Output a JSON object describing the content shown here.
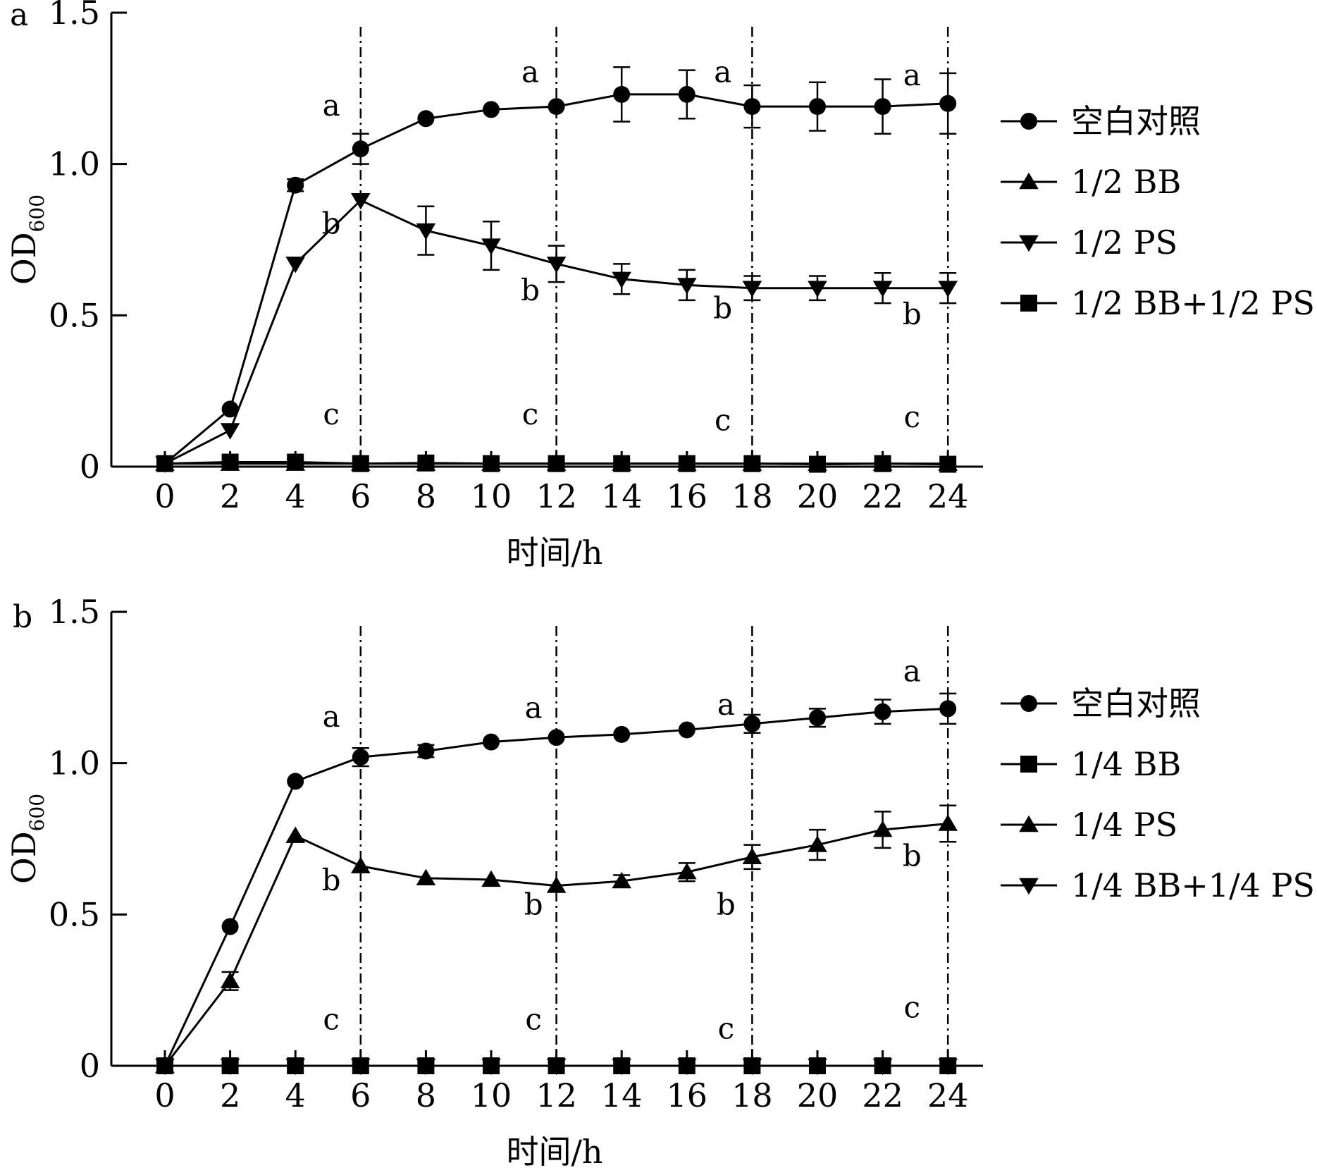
{
  "chart_data": [
    {
      "type": "line",
      "panel_label": "a",
      "xlabel": "时间/h",
      "ylabel_main": "OD",
      "ylabel_sub": "600",
      "xlim": [
        -1,
        25
      ],
      "ylim": [
        0,
        1.5
      ],
      "x_ticks": [
        "0",
        "2",
        "4",
        "6",
        "8",
        "10",
        "12",
        "14",
        "16",
        "18",
        "20",
        "22",
        "24"
      ],
      "y_ticks": [
        "0",
        "0.5",
        "1.0",
        "1.5"
      ],
      "y_tick_values": [
        0,
        0.5,
        1.0,
        1.5
      ],
      "vlines": [
        6,
        12,
        18,
        24
      ],
      "series": [
        {
          "name": "空白对照",
          "marker": "circle",
          "x": [
            0,
            2,
            4,
            6,
            8,
            10,
            12,
            14,
            16,
            18,
            20,
            22,
            24
          ],
          "y": [
            0.01,
            0.19,
            0.93,
            1.05,
            1.15,
            1.18,
            1.19,
            1.23,
            1.23,
            1.19,
            1.19,
            1.19,
            1.2
          ],
          "err": [
            0,
            0,
            0.02,
            0.05,
            0,
            0,
            0,
            0.09,
            0.08,
            0.07,
            0.08,
            0.09,
            0.1
          ]
        },
        {
          "name": "1/2 BB",
          "marker": "triangle-up",
          "x": [
            0,
            2,
            4,
            6,
            8,
            10,
            12,
            14,
            16,
            18,
            20,
            22,
            24
          ],
          "y": [
            0.01,
            0.01,
            0.01,
            0.01,
            0.01,
            0.01,
            0.01,
            0.01,
            0.01,
            0.01,
            0.01,
            0.01,
            0.01
          ],
          "err": [
            0,
            0,
            0,
            0,
            0,
            0,
            0,
            0,
            0,
            0,
            0,
            0,
            0
          ]
        },
        {
          "name": "1/2 PS",
          "marker": "triangle-down",
          "x": [
            0,
            2,
            4,
            6,
            8,
            10,
            12,
            14,
            16,
            18,
            20,
            22,
            24
          ],
          "y": [
            0.01,
            0.12,
            0.67,
            0.88,
            0.78,
            0.73,
            0.67,
            0.62,
            0.6,
            0.59,
            0.59,
            0.59,
            0.59
          ],
          "err": [
            0,
            0,
            0,
            0,
            0.08,
            0.08,
            0.06,
            0.05,
            0.05,
            0.04,
            0.04,
            0.05,
            0.05
          ]
        },
        {
          "name": "1/2 BB+1/2 PS",
          "marker": "square",
          "x": [
            0,
            2,
            4,
            6,
            8,
            10,
            12,
            14,
            16,
            18,
            20,
            22,
            24
          ],
          "y": [
            0.01,
            0.015,
            0.015,
            0.01,
            0.012,
            0.01,
            0.01,
            0.01,
            0.01,
            0.01,
            0.008,
            0.01,
            0.008
          ],
          "err": [
            0,
            0,
            0,
            0,
            0,
            0,
            0,
            0,
            0,
            0,
            0,
            0,
            0
          ]
        }
      ],
      "annotations": [
        {
          "text": "a",
          "x": 5.1,
          "y": 1.16
        },
        {
          "text": "b",
          "x": 5.1,
          "y": 0.77
        },
        {
          "text": "c",
          "x": 5.1,
          "y": 0.14
        },
        {
          "text": "a",
          "x": 11.2,
          "y": 1.27
        },
        {
          "text": "b",
          "x": 11.2,
          "y": 0.55
        },
        {
          "text": "c",
          "x": 11.2,
          "y": 0.14
        },
        {
          "text": "a",
          "x": 17.1,
          "y": 1.27
        },
        {
          "text": "b",
          "x": 17.1,
          "y": 0.49
        },
        {
          "text": "c",
          "x": 17.1,
          "y": 0.12
        },
        {
          "text": "a",
          "x": 22.9,
          "y": 1.26
        },
        {
          "text": "b",
          "x": 22.9,
          "y": 0.47
        },
        {
          "text": "c",
          "x": 22.9,
          "y": 0.13
        }
      ]
    },
    {
      "type": "line",
      "panel_label": "b",
      "xlabel": "时间/h",
      "ylabel_main": "OD",
      "ylabel_sub": "600",
      "xlim": [
        -1,
        25
      ],
      "ylim": [
        0,
        1.5
      ],
      "x_ticks": [
        "0",
        "2",
        "4",
        "6",
        "8",
        "10",
        "12",
        "14",
        "16",
        "18",
        "20",
        "22",
        "24"
      ],
      "y_ticks": [
        "0",
        "0.5",
        "1.0",
        "1.5"
      ],
      "y_tick_values": [
        0,
        0.5,
        1.0,
        1.5
      ],
      "vlines": [
        6,
        12,
        18,
        24
      ],
      "series": [
        {
          "name": "空白对照",
          "marker": "circle",
          "x": [
            0,
            2,
            4,
            6,
            8,
            10,
            12,
            14,
            16,
            18,
            20,
            22,
            24
          ],
          "y": [
            0.0,
            0.46,
            0.94,
            1.02,
            1.04,
            1.07,
            1.085,
            1.095,
            1.11,
            1.13,
            1.15,
            1.17,
            1.18
          ],
          "err": [
            0,
            0,
            0,
            0.03,
            0.02,
            0,
            0,
            0,
            0,
            0.03,
            0.03,
            0.04,
            0.05
          ]
        },
        {
          "name": "1/4 BB",
          "marker": "square",
          "x": [
            0,
            2,
            4,
            6,
            8,
            10,
            12,
            14,
            16,
            18,
            20,
            22,
            24
          ],
          "y": [
            0,
            0,
            0,
            0,
            0,
            0,
            0,
            0,
            0,
            0,
            0,
            0,
            0
          ],
          "err": [
            0,
            0,
            0,
            0,
            0,
            0,
            0,
            0,
            0,
            0,
            0,
            0,
            0
          ]
        },
        {
          "name": "1/4 PS",
          "marker": "triangle-up",
          "x": [
            0,
            2,
            4,
            6,
            8,
            10,
            12,
            14,
            16,
            18,
            20,
            22,
            24
          ],
          "y": [
            0.0,
            0.28,
            0.76,
            0.66,
            0.62,
            0.615,
            0.595,
            0.61,
            0.64,
            0.69,
            0.73,
            0.78,
            0.8
          ],
          "err": [
            0,
            0.03,
            0,
            0,
            0,
            0,
            0,
            0.02,
            0.03,
            0.04,
            0.05,
            0.06,
            0.06
          ]
        },
        {
          "name": "1/4 BB+1/4 PS",
          "marker": "triangle-down",
          "x": [
            0,
            2,
            4,
            6,
            8,
            10,
            12,
            14,
            16,
            18,
            20,
            22,
            24
          ],
          "y": [
            0,
            0,
            0,
            0,
            0,
            0,
            0,
            0,
            0,
            0,
            0,
            0,
            0
          ],
          "err": [
            0,
            0,
            0,
            0,
            0,
            0,
            0,
            0,
            0,
            0,
            0,
            0,
            0
          ]
        }
      ],
      "annotations": [
        {
          "text": "a",
          "x": 5.1,
          "y": 1.12
        },
        {
          "text": "b",
          "x": 5.1,
          "y": 0.58
        },
        {
          "text": "c",
          "x": 5.1,
          "y": 0.12
        },
        {
          "text": "a",
          "x": 11.3,
          "y": 1.15
        },
        {
          "text": "b",
          "x": 11.3,
          "y": 0.5
        },
        {
          "text": "c",
          "x": 11.3,
          "y": 0.12
        },
        {
          "text": "a",
          "x": 17.2,
          "y": 1.16
        },
        {
          "text": "b",
          "x": 17.2,
          "y": 0.5
        },
        {
          "text": "c",
          "x": 17.2,
          "y": 0.09
        },
        {
          "text": "a",
          "x": 22.9,
          "y": 1.27
        },
        {
          "text": "b",
          "x": 22.9,
          "y": 0.66
        },
        {
          "text": "c",
          "x": 22.9,
          "y": 0.16
        }
      ]
    }
  ]
}
